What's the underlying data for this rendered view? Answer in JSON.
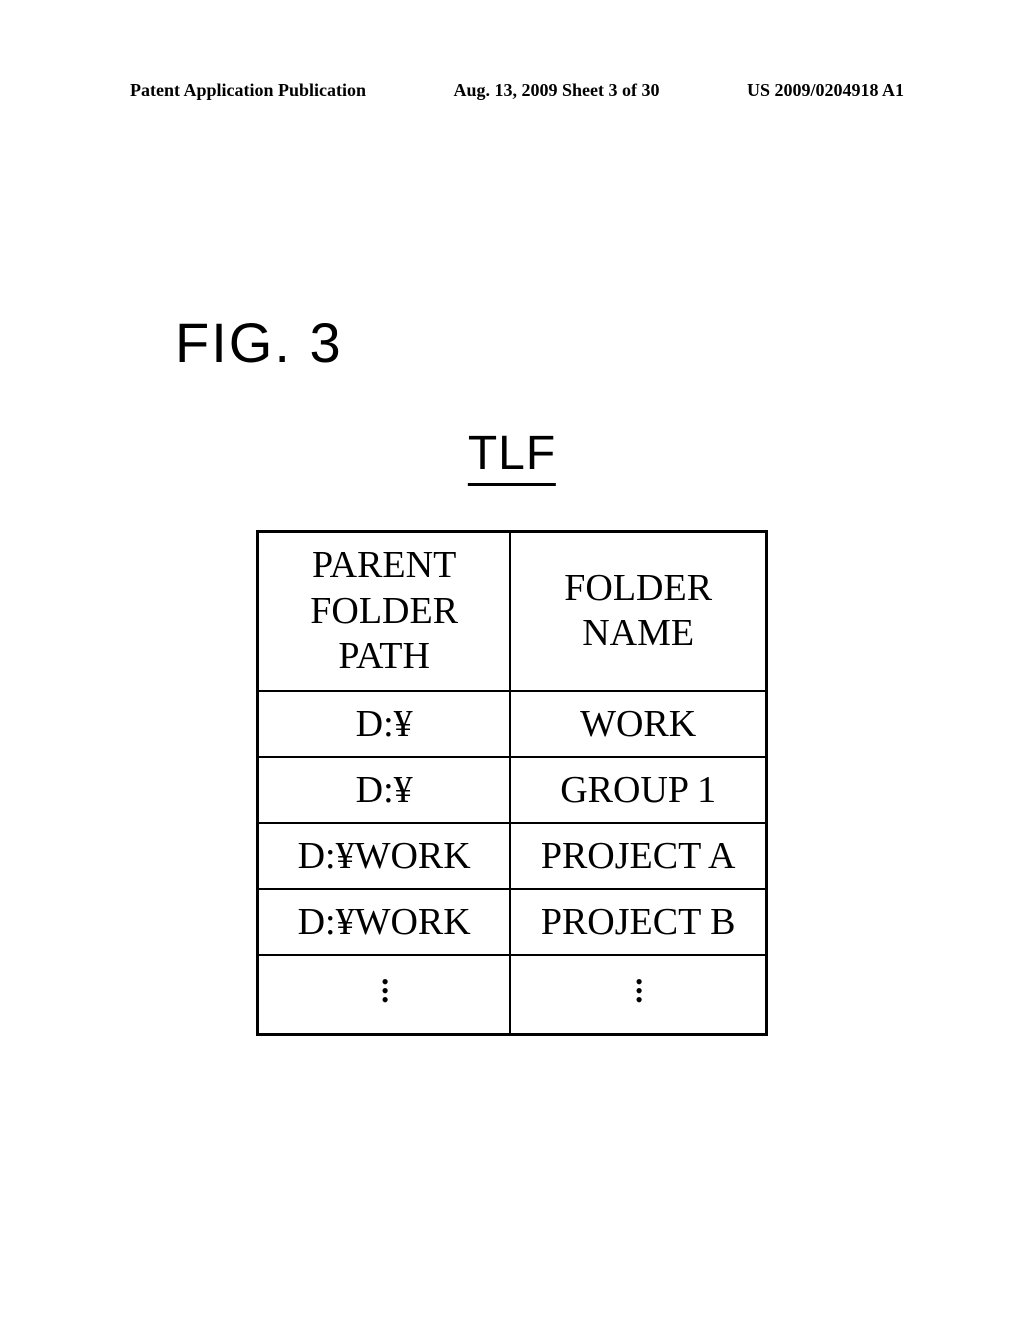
{
  "header": {
    "left": "Patent Application Publication",
    "center": "Aug. 13, 2009  Sheet 3 of 30",
    "right": "US 2009/0204918 A1"
  },
  "figure": {
    "label": "FIG. 3",
    "table_label": "TLF"
  },
  "table": {
    "columns": [
      "PARENT FOLDER\nPATH",
      "FOLDER NAME"
    ],
    "rows": [
      [
        "D:¥",
        "WORK"
      ],
      [
        "D:¥",
        "GROUP 1"
      ],
      [
        "D:¥WORK",
        "PROJECT A"
      ],
      [
        "D:¥WORK",
        "PROJECT B"
      ]
    ],
    "has_ellipsis_row": true
  },
  "styling": {
    "background_color": "#ffffff",
    "border_color": "#000000",
    "text_color": "#000000",
    "header_fontsize": 18,
    "figure_label_fontsize": 56,
    "table_label_fontsize": 48,
    "cell_fontsize": 38,
    "col_path_width": 350,
    "col_name_width": 340
  }
}
